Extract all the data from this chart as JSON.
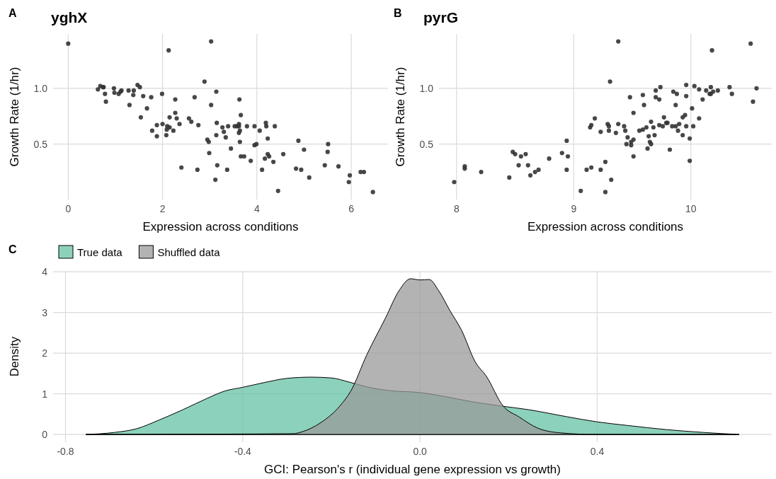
{
  "chart_data": [
    {
      "type": "scatter",
      "title": "yghX",
      "xlabel": "Expression across conditions",
      "ylabel": "Growth Rate (1/hr)",
      "annotations": [
        "A"
      ],
      "xlim": [
        -0.32,
        6.78
      ],
      "ylim": [
        0.003,
        1.487
      ],
      "xticks": [
        0,
        2,
        4,
        6
      ],
      "yticks": [
        0.5,
        {
          "value": 1,
          "label": "1.0"
        }
      ],
      "grid": true,
      "legend": false,
      "marker": "circle",
      "series": [
        {
          "color": "#333333",
          "x": [
            0,
            0.63,
            0.68,
            0.74,
            0.75,
            0.78,
            0.8,
            0.97,
            0.98,
            1.07,
            1.11,
            1.13,
            1.28,
            1.3,
            1.38,
            1.39,
            1.47,
            1.52,
            1.54,
            1.59,
            1.67,
            1.76,
            1.78,
            1.88,
            1.88,
            1.99,
            2.0,
            2.08,
            2.09,
            2.1,
            2.15,
            2.13,
            2.15,
            2.23,
            2.27,
            2.27,
            2.3,
            2.36,
            2.4,
            2.56,
            2.61,
            2.68,
            2.74,
            2.76,
            2.89,
            2.95,
            2.98,
            2.99,
            3.03,
            3.03,
            3.12,
            3.14,
            3.14,
            3.15,
            3.16,
            3.27,
            3.3,
            3.34,
            3.37,
            3.39,
            3.45,
            3.53,
            3.58,
            3.62,
            3.62,
            3.63,
            3.62,
            3.64,
            3.64,
            3.66,
            3.66,
            3.73,
            3.79,
            3.87,
            3.95,
            3.95,
            3.99,
            4.06,
            4.11,
            4.19,
            4.2,
            4.17,
            4.23,
            4.23,
            4.26,
            4.35,
            4.38,
            4.45,
            4.56,
            4.83,
            4.88,
            4.94,
            5.0,
            5.11,
            5.44,
            5.5,
            5.51,
            5.73,
            5.95,
            5.97,
            6.2,
            6.27,
            6.46
          ],
          "values": [
            1.4,
            0.99,
            1.02,
            1.01,
            1.01,
            0.95,
            0.88,
            1.0,
            0.96,
            0.95,
            0.97,
            0.98,
            0.98,
            0.85,
            0.94,
            0.98,
            1.03,
            1.01,
            0.74,
            0.93,
            0.82,
            0.92,
            0.62,
            0.67,
            0.57,
            0.95,
            0.68,
            0.58,
            0.63,
            0.66,
            0.65,
            1.34,
            0.74,
            0.62,
            0.78,
            0.9,
            0.73,
            0.68,
            0.29,
            0.73,
            0.7,
            0.92,
            0.27,
            0.67,
            1.06,
            0.54,
            0.52,
            0.42,
            1.42,
            0.85,
            0.18,
            0.58,
            0.97,
            0.69,
            0.31,
            0.65,
            0.61,
            0.56,
            0.27,
            0.66,
            0.46,
            0.66,
            0.66,
            0.68,
            0.66,
            0.9,
            0.6,
            0.62,
            0.52,
            0.76,
            0.39,
            0.39,
            0.66,
            0.35,
            0.66,
            0.49,
            0.5,
            0.62,
            0.27,
            0.69,
            0.66,
            0.37,
            0.41,
            0.55,
            0.39,
            0.34,
            0.66,
            0.08,
            0.41,
            0.28,
            0.53,
            0.27,
            0.45,
            0.2,
            0.31,
            0.43,
            0.5,
            0.3,
            0.16,
            0.22,
            0.25,
            0.25,
            0.07
          ]
        }
      ]
    },
    {
      "type": "scatter",
      "title": "pyrG",
      "xlabel": "Expression across conditions",
      "ylabel": "Growth Rate (1/hr)",
      "annotations": [
        "B"
      ],
      "xlim": [
        7.85,
        10.69
      ],
      "ylim": [
        0.003,
        1.487
      ],
      "xticks": [
        8,
        9,
        10
      ],
      "yticks": [
        0.5,
        {
          "value": 1,
          "label": "1.0"
        }
      ],
      "grid": true,
      "legend": false,
      "marker": "circle",
      "series": [
        {
          "color": "#333333",
          "x": [
            7.98,
            8.07,
            8.07,
            8.21,
            8.45,
            8.48,
            8.5,
            8.53,
            8.55,
            8.59,
            8.61,
            8.63,
            8.67,
            8.7,
            8.79,
            8.9,
            8.94,
            8.94,
            8.95,
            9.06,
            9.11,
            9.14,
            9.15,
            9.15,
            9.18,
            9.23,
            9.23,
            9.27,
            9.27,
            9.29,
            9.3,
            9.3,
            9.31,
            9.32,
            9.36,
            9.38,
            9.38,
            9.43,
            9.44,
            9.46,
            9.45,
            9.48,
            9.49,
            9.49,
            9.51,
            9.51,
            9.51,
            9.56,
            9.59,
            9.59,
            9.6,
            9.62,
            9.63,
            9.64,
            9.65,
            9.66,
            9.66,
            9.68,
            9.69,
            9.7,
            9.7,
            9.73,
            9.73,
            9.74,
            9.76,
            9.77,
            9.79,
            9.8,
            9.82,
            9.84,
            9.85,
            9.87,
            9.87,
            9.88,
            9.89,
            9.9,
            9.93,
            9.93,
            9.95,
            9.96,
            9.96,
            9.96,
            9.99,
            9.99,
            10.01,
            10.02,
            10.03,
            10.07,
            10.07,
            10.1,
            10.13,
            10.17,
            10.16,
            10.17,
            10.18,
            10.19,
            10.23,
            10.33,
            10.35,
            10.51,
            10.53,
            10.56
          ],
          "values": [
            0.16,
            0.3,
            0.28,
            0.25,
            0.2,
            0.43,
            0.41,
            0.31,
            0.39,
            0.41,
            0.31,
            0.22,
            0.25,
            0.27,
            0.37,
            0.42,
            0.27,
            0.53,
            0.39,
            0.08,
            0.27,
            0.65,
            0.67,
            0.29,
            0.73,
            0.61,
            0.27,
            0.34,
            0.07,
            0.68,
            0.66,
            0.62,
            1.06,
            0.18,
            0.6,
            0.68,
            1.42,
            0.66,
            0.62,
            0.56,
            0.5,
            0.92,
            0.52,
            0.49,
            0.39,
            0.78,
            0.54,
            0.62,
            0.94,
            0.63,
            0.85,
            0.65,
            0.46,
            0.57,
            0.52,
            0.7,
            0.5,
            0.65,
            0.58,
            0.92,
            0.98,
            0.67,
            0.9,
            1.01,
            0.66,
            0.74,
            0.69,
            0.69,
            0.45,
            0.66,
            0.97,
            0.85,
            0.66,
            0.95,
            0.62,
            0.68,
            0.74,
            0.58,
            0.76,
            0.66,
            0.93,
            1.03,
            0.35,
            0.55,
            0.82,
            0.66,
            1.02,
            0.99,
            0.73,
            0.9,
            0.98,
            1.01,
            0.95,
            0.95,
            1.34,
            0.97,
            0.98,
            1.01,
            0.95,
            1.4,
            0.88,
            1.0
          ]
        }
      ]
    },
    {
      "type": "area",
      "xlabel": "GCI: Pearson's r (individual gene expression vs growth)",
      "ylabel": "Density",
      "annotations": [
        "C"
      ],
      "xlim": [
        -0.828,
        0.794
      ],
      "ylim": [
        -0.19,
        4.02
      ],
      "xticks": [
        -0.8,
        -0.4,
        {
          "value": 0,
          "label": "0.0"
        },
        0.4
      ],
      "yticks": [
        0,
        1,
        2,
        3,
        4
      ],
      "grid": true,
      "legend": "top left",
      "series": [
        {
          "name": "True data",
          "color": "#66c2a5",
          "x": [
            -0.754,
            -0.69,
            -0.64,
            -0.59,
            -0.535,
            -0.48,
            -0.44,
            -0.4,
            -0.35,
            -0.3,
            -0.245,
            -0.2,
            -0.16,
            -0.12,
            -0.07,
            0,
            0.057,
            0.12,
            0.19,
            0.245,
            0.33,
            0.4,
            0.47,
            0.556,
            0.64,
            0.72
          ],
          "values": [
            0,
            0.05,
            0.14,
            0.35,
            0.61,
            0.89,
            1.07,
            1.16,
            1.28,
            1.38,
            1.41,
            1.39,
            1.29,
            1.17,
            1.08,
            1.03,
            0.93,
            0.8,
            0.69,
            0.61,
            0.44,
            0.31,
            0.22,
            0.12,
            0.05,
            0
          ]
        },
        {
          "name": "Shuffled data",
          "color": "#999999",
          "x": [
            -0.754,
            -0.45,
            -0.286,
            -0.265,
            -0.224,
            -0.18,
            -0.156,
            -0.12,
            -0.078,
            -0.047,
            -0.021,
            0,
            0.021,
            0.042,
            0.068,
            0.094,
            0.125,
            0.15,
            0.187,
            0.224,
            0.265,
            0.317,
            0.4,
            0.72
          ],
          "values": [
            0,
            0.01,
            0.02,
            0.07,
            0.29,
            0.71,
            1.07,
            1.96,
            2.86,
            3.54,
            3.83,
            3.8,
            3.81,
            3.54,
            3.04,
            2.56,
            1.78,
            1.43,
            0.71,
            0.43,
            0.16,
            0.04,
            0,
            0
          ]
        }
      ]
    }
  ]
}
